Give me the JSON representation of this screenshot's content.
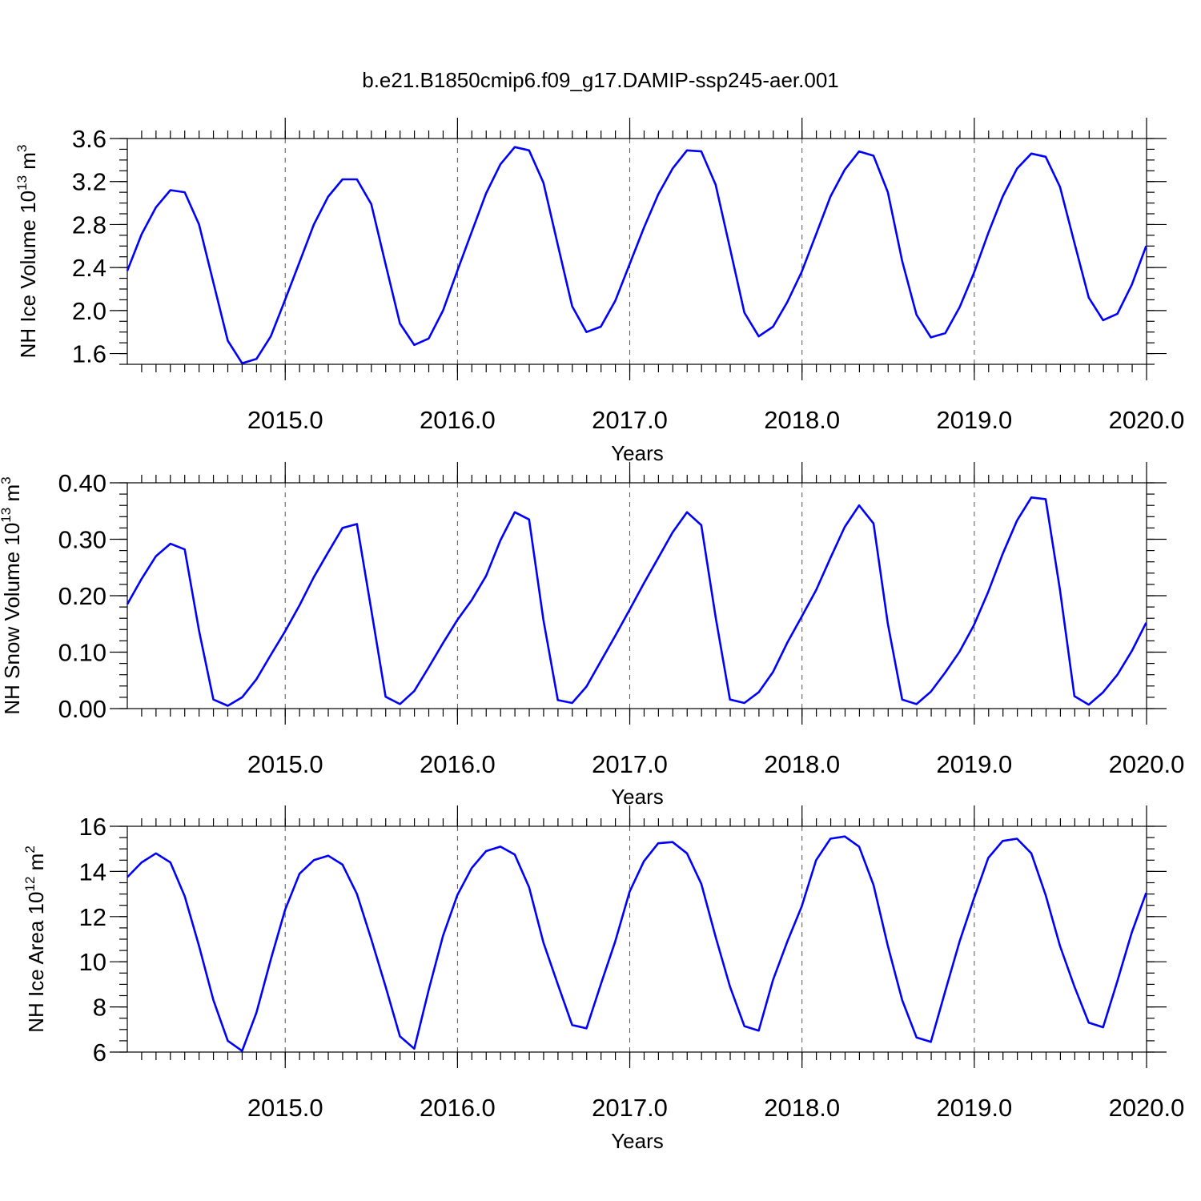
{
  "title": "b.e21.B1850cmip6.f09_g17.DAMIP-ssp245-aer.001",
  "colors": {
    "series": "#0000ff",
    "frame": "#000000",
    "grid": "#555555"
  },
  "chart_data": [
    {
      "type": "line",
      "ylabel_main": "NH Ice Volume 10",
      "ylabel_exp": "13",
      "ylabel_unit": " m",
      "ylabel_unit_exp": "3",
      "xlabel": "Years",
      "xlim": [
        2014.0833,
        2020.0
      ],
      "ylim": [
        1.5,
        3.6
      ],
      "yticks": [
        1.6,
        2.0,
        2.4,
        2.8,
        3.2,
        3.6
      ],
      "ytick_labels": [
        "1.6",
        "2.0",
        "2.4",
        "2.8",
        "3.2",
        "3.6"
      ],
      "yminor_step": 0.1,
      "xticks": [
        2015.0,
        2016.0,
        2017.0,
        2018.0,
        2019.0,
        2020.0
      ],
      "xtick_labels": [
        "2015.0",
        "2016.0",
        "2017.0",
        "2018.0",
        "2019.0",
        "2020.0"
      ],
      "grid": "vertical dashed at years",
      "x_start": 2014.0833,
      "x_step": 0.0833,
      "values": [
        2.37,
        2.71,
        2.96,
        3.12,
        3.1,
        2.8,
        2.26,
        1.72,
        1.51,
        1.55,
        1.76,
        2.1,
        2.45,
        2.8,
        3.06,
        3.22,
        3.22,
        2.99,
        2.43,
        1.88,
        1.68,
        1.74,
        2.0,
        2.37,
        2.73,
        3.09,
        3.36,
        3.52,
        3.49,
        3.19,
        2.61,
        2.04,
        1.8,
        1.85,
        2.09,
        2.43,
        2.77,
        3.08,
        3.32,
        3.49,
        3.48,
        3.17,
        2.58,
        1.98,
        1.76,
        1.85,
        2.08,
        2.36,
        2.71,
        3.06,
        3.31,
        3.48,
        3.44,
        3.1,
        2.46,
        1.96,
        1.75,
        1.79,
        2.03,
        2.35,
        2.72,
        3.06,
        3.32,
        3.46,
        3.43,
        3.15,
        2.63,
        2.12,
        1.91,
        1.97,
        2.24,
        2.6
      ]
    },
    {
      "type": "line",
      "ylabel_main": "NH Snow Volume 10",
      "ylabel_exp": "13",
      "ylabel_unit": " m",
      "ylabel_unit_exp": "3",
      "xlabel": "Years",
      "xlim": [
        2014.0833,
        2020.0
      ],
      "ylim": [
        0.0,
        0.4
      ],
      "yticks": [
        0.0,
        0.1,
        0.2,
        0.3,
        0.4
      ],
      "ytick_labels": [
        "0.00",
        "0.10",
        "0.20",
        "0.30",
        "0.40"
      ],
      "yminor_step": 0.02,
      "xticks": [
        2015.0,
        2016.0,
        2017.0,
        2018.0,
        2019.0,
        2020.0
      ],
      "xtick_labels": [
        "2015.0",
        "2016.0",
        "2017.0",
        "2018.0",
        "2019.0",
        "2020.0"
      ],
      "grid": "vertical dashed at years",
      "x_start": 2014.0833,
      "x_step": 0.0833,
      "values": [
        0.185,
        0.23,
        0.27,
        0.292,
        0.282,
        0.138,
        0.016,
        0.005,
        0.02,
        0.052,
        0.095,
        0.137,
        0.183,
        0.233,
        0.277,
        0.32,
        0.327,
        0.175,
        0.021,
        0.008,
        0.031,
        0.073,
        0.116,
        0.157,
        0.192,
        0.235,
        0.298,
        0.348,
        0.335,
        0.157,
        0.015,
        0.01,
        0.039,
        0.084,
        0.129,
        0.175,
        0.222,
        0.267,
        0.312,
        0.348,
        0.325,
        0.162,
        0.016,
        0.01,
        0.029,
        0.065,
        0.117,
        0.163,
        0.21,
        0.267,
        0.322,
        0.36,
        0.328,
        0.15,
        0.016,
        0.008,
        0.03,
        0.064,
        0.101,
        0.148,
        0.207,
        0.274,
        0.333,
        0.374,
        0.371,
        0.21,
        0.022,
        0.007,
        0.029,
        0.06,
        0.102,
        0.152
      ]
    },
    {
      "type": "line",
      "ylabel_main": "NH Ice Area 10",
      "ylabel_exp": "12",
      "ylabel_unit": " m",
      "ylabel_unit_exp": "2",
      "xlabel": "Years",
      "xlim": [
        2014.0833,
        2020.0
      ],
      "ylim": [
        6,
        16
      ],
      "yticks": [
        6,
        8,
        10,
        12,
        14,
        16
      ],
      "ytick_labels": [
        "6",
        "8",
        "10",
        "12",
        "14",
        "16"
      ],
      "yminor_step": 0.5,
      "xticks": [
        2015.0,
        2016.0,
        2017.0,
        2018.0,
        2019.0,
        2020.0
      ],
      "xtick_labels": [
        "2015.0",
        "2016.0",
        "2017.0",
        "2018.0",
        "2019.0",
        "2020.0"
      ],
      "grid": "vertical dashed at years",
      "x_start": 2014.0833,
      "x_step": 0.0833,
      "values": [
        13.75,
        14.4,
        14.8,
        14.4,
        12.9,
        10.7,
        8.3,
        6.5,
        6.05,
        7.75,
        10.1,
        12.3,
        13.9,
        14.5,
        14.7,
        14.3,
        13.0,
        11.0,
        8.9,
        6.7,
        6.15,
        8.75,
        11.15,
        12.95,
        14.15,
        14.9,
        15.1,
        14.75,
        13.3,
        10.85,
        9.0,
        7.2,
        7.05,
        9.0,
        10.9,
        13.1,
        14.45,
        15.25,
        15.3,
        14.8,
        13.45,
        11.1,
        8.9,
        7.15,
        6.95,
        9.2,
        10.9,
        12.45,
        14.5,
        15.45,
        15.55,
        15.1,
        13.4,
        10.7,
        8.3,
        6.65,
        6.45,
        8.7,
        10.9,
        12.8,
        14.6,
        15.35,
        15.45,
        14.8,
        12.95,
        10.7,
        8.9,
        7.3,
        7.1,
        9.15,
        11.3,
        13.05
      ]
    }
  ]
}
